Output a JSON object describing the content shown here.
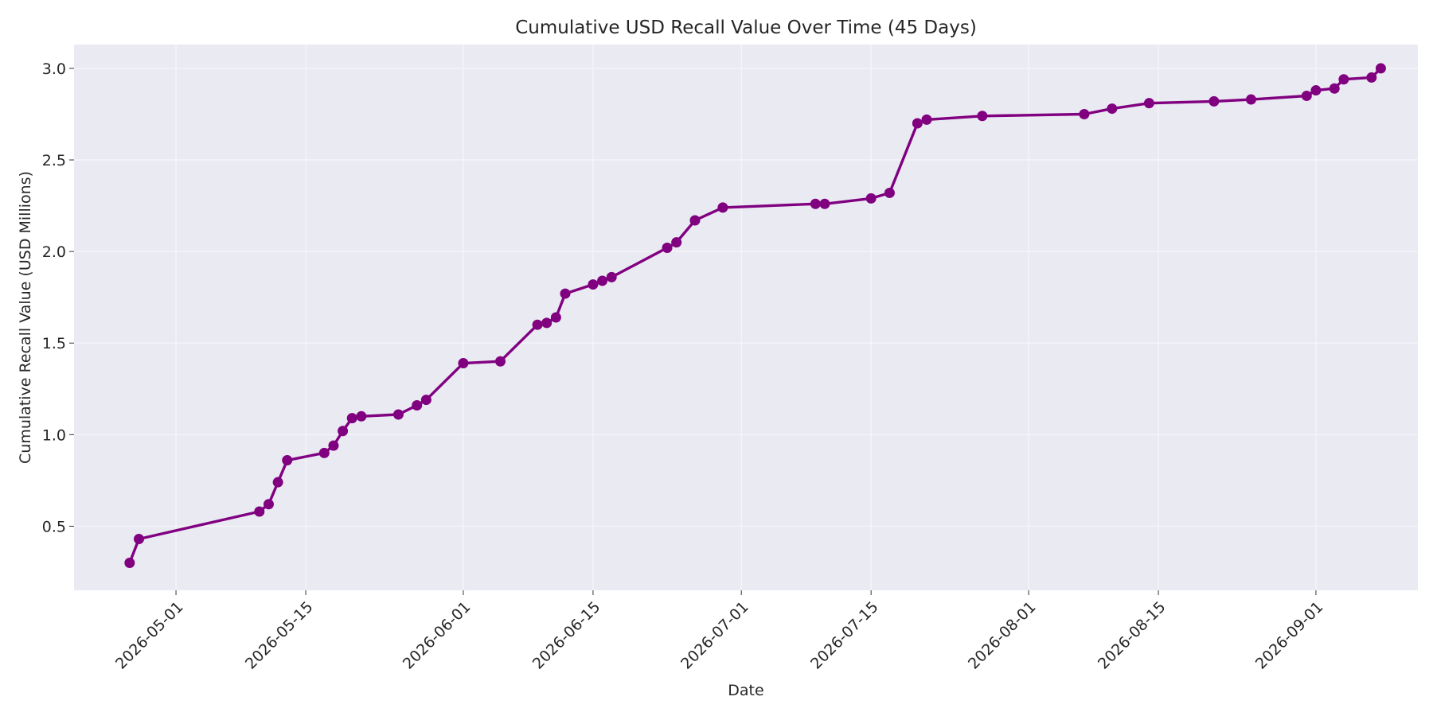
{
  "chart_data": {
    "type": "line",
    "title": "Cumulative USD Recall Value Over Time (45 Days)",
    "xlabel": "Date",
    "ylabel": "Cumulative Recall Value (USD Millions)",
    "xlim": [
      "2026-04-20",
      "2026-09-12"
    ],
    "ylim": [
      0.15,
      3.13
    ],
    "x_ticks": [
      "2026-05-01",
      "2026-05-15",
      "2026-06-01",
      "2026-06-15",
      "2026-07-01",
      "2026-07-15",
      "2026-08-01",
      "2026-08-15",
      "2026-09-01"
    ],
    "y_ticks": [
      0.5,
      1.0,
      1.5,
      2.0,
      2.5,
      3.0
    ],
    "y_tick_labels": [
      "0.5",
      "1.0",
      "1.5",
      "2.0",
      "2.5",
      "3.0"
    ],
    "grid": true,
    "background_color": "#eaeaf2",
    "series": [
      {
        "color": "#800080",
        "marker": "circle",
        "x": [
          "2026-04-26",
          "2026-04-27",
          "2026-05-10",
          "2026-05-11",
          "2026-05-12",
          "2026-05-13",
          "2026-05-17",
          "2026-05-18",
          "2026-05-19",
          "2026-05-20",
          "2026-05-21",
          "2026-05-25",
          "2026-05-27",
          "2026-05-28",
          "2026-06-01",
          "2026-06-05",
          "2026-06-09",
          "2026-06-10",
          "2026-06-11",
          "2026-06-12",
          "2026-06-15",
          "2026-06-16",
          "2026-06-17",
          "2026-06-23",
          "2026-06-24",
          "2026-06-26",
          "2026-06-29",
          "2026-07-09",
          "2026-07-10",
          "2026-07-15",
          "2026-07-17",
          "2026-07-20",
          "2026-07-21",
          "2026-07-27",
          "2026-08-07",
          "2026-08-10",
          "2026-08-14",
          "2026-08-21",
          "2026-08-25",
          "2026-08-31",
          "2026-09-01",
          "2026-09-03",
          "2026-09-04",
          "2026-09-07",
          "2026-09-08"
        ],
        "y": [
          0.3,
          0.43,
          0.58,
          0.62,
          0.74,
          0.86,
          0.9,
          0.94,
          1.02,
          1.09,
          1.1,
          1.11,
          1.16,
          1.19,
          1.39,
          1.4,
          1.6,
          1.61,
          1.64,
          1.77,
          1.82,
          1.84,
          1.86,
          2.02,
          2.05,
          2.17,
          2.24,
          2.26,
          2.26,
          2.29,
          2.32,
          2.7,
          2.72,
          2.74,
          2.75,
          2.78,
          2.81,
          2.82,
          2.83,
          2.85,
          2.88,
          2.89,
          2.94,
          2.95,
          3.0
        ]
      }
    ]
  }
}
